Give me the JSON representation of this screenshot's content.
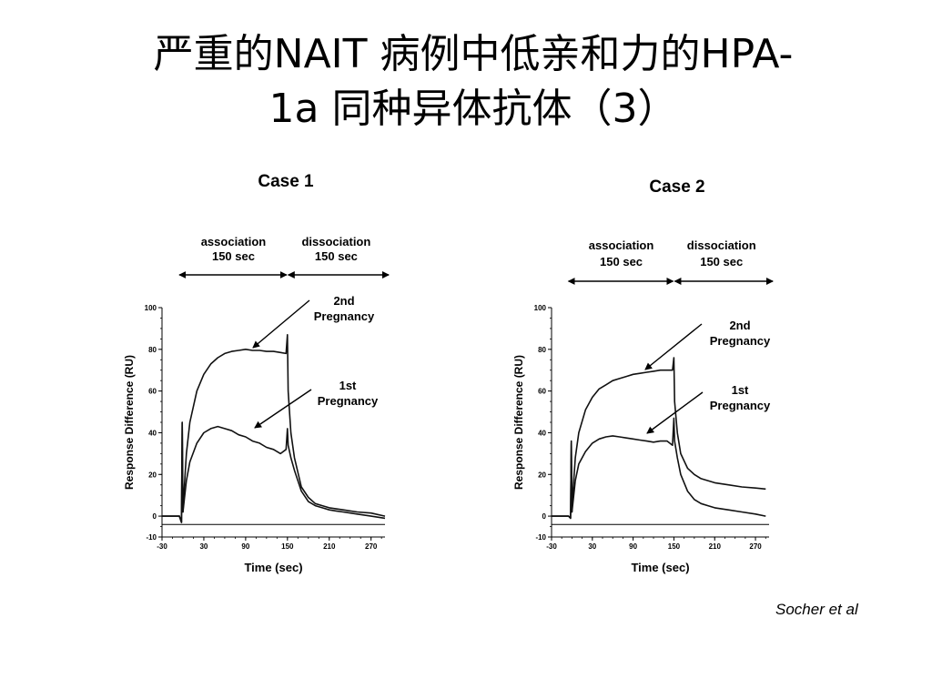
{
  "slide": {
    "title_line1": "严重的NAIT 病例中低亲和力的HPA-",
    "title_line2": "1a 同种异体抗体（3）",
    "citation": "Socher et al"
  },
  "chart_data": [
    {
      "type": "line",
      "title": "Case 1",
      "xlabel": "Time (sec)",
      "ylabel": "Response Difference (RU)",
      "xlim": [
        -30,
        290
      ],
      "ylim": [
        -10,
        100
      ],
      "xticks": [
        -30,
        30,
        90,
        150,
        210,
        270
      ],
      "yticks": [
        -10,
        0,
        20,
        40,
        60,
        80,
        100
      ],
      "phases": [
        {
          "label1": "association",
          "label2": "150 sec"
        },
        {
          "label1": "dissociation",
          "label2": "150 sec"
        }
      ],
      "annotations": [
        {
          "line1": "2nd",
          "line2": "Pregnancy",
          "series": "2nd Pregnancy"
        },
        {
          "line1": "1st",
          "line2": "Pregnancy",
          "series": "1st Pregnancy"
        }
      ],
      "series": [
        {
          "name": "2nd Pregnancy",
          "x": [
            -30,
            -5,
            -2,
            -1,
            0,
            2,
            5,
            10,
            20,
            30,
            40,
            50,
            60,
            70,
            80,
            90,
            100,
            110,
            120,
            130,
            140,
            148,
            150,
            151,
            155,
            160,
            170,
            180,
            190,
            200,
            210,
            220,
            230,
            250,
            270,
            290
          ],
          "y": [
            0,
            0,
            -3,
            45,
            2,
            14,
            30,
            45,
            60,
            68,
            73,
            76,
            78,
            79,
            79.5,
            80,
            79.5,
            79.5,
            79,
            79,
            78.5,
            78,
            87,
            60,
            40,
            28,
            14,
            9,
            6,
            5,
            4,
            3.5,
            3,
            2,
            1.5,
            0
          ]
        },
        {
          "name": "1st Pregnancy",
          "x": [
            -30,
            -5,
            -2,
            -1,
            0,
            2,
            5,
            10,
            20,
            30,
            40,
            50,
            60,
            70,
            80,
            90,
            100,
            110,
            120,
            130,
            140,
            148,
            150,
            151,
            155,
            160,
            170,
            180,
            190,
            200,
            210,
            220,
            230,
            250,
            270,
            290
          ],
          "y": [
            0,
            0,
            -3,
            45,
            2,
            8,
            17,
            26,
            35,
            40,
            42,
            43,
            42,
            41,
            39,
            38,
            36,
            35,
            33,
            32,
            30,
            32,
            42,
            34,
            28,
            22,
            12,
            7,
            5,
            4,
            3,
            2.5,
            2,
            1,
            0,
            -1
          ]
        }
      ]
    },
    {
      "type": "line",
      "title": "Case 2",
      "xlabel": "Time (sec)",
      "ylabel": "Response Difference (RU)",
      "xlim": [
        -30,
        290
      ],
      "ylim": [
        -10,
        100
      ],
      "xticks": [
        -30,
        30,
        90,
        150,
        210,
        270
      ],
      "yticks": [
        -10,
        0,
        20,
        40,
        60,
        80,
        100
      ],
      "phases": [
        {
          "label1": "association",
          "label2": "150 sec"
        },
        {
          "label1": "dissociation",
          "label2": "150 sec"
        }
      ],
      "annotations": [
        {
          "line1": "2nd",
          "line2": "Pregnancy",
          "series": "2nd Pregnancy"
        },
        {
          "line1": "1st",
          "line2": "Pregnancy",
          "series": "1st Pregnancy"
        }
      ],
      "series": [
        {
          "name": "2nd Pregnancy",
          "x": [
            -30,
            -5,
            -2,
            -1,
            0,
            2,
            5,
            10,
            20,
            30,
            40,
            50,
            60,
            70,
            80,
            90,
            100,
            110,
            120,
            130,
            140,
            148,
            150,
            151,
            155,
            160,
            170,
            180,
            190,
            200,
            210,
            220,
            230,
            250,
            270,
            285
          ],
          "y": [
            0,
            0,
            -1,
            35,
            2,
            14,
            28,
            40,
            51,
            57,
            61,
            63,
            65,
            66,
            67,
            68,
            68.5,
            69,
            69.5,
            70,
            70,
            70,
            76,
            55,
            40,
            30,
            23,
            20,
            18,
            17,
            16,
            15.5,
            15,
            14,
            13.5,
            13
          ]
        },
        {
          "name": "1st Pregnancy",
          "x": [
            -30,
            -5,
            -2,
            -1,
            0,
            2,
            5,
            10,
            20,
            30,
            40,
            50,
            60,
            70,
            80,
            90,
            100,
            110,
            120,
            130,
            140,
            148,
            150,
            151,
            155,
            160,
            170,
            180,
            190,
            200,
            210,
            220,
            230,
            250,
            270,
            285
          ],
          "y": [
            0,
            0,
            -1,
            36,
            2,
            8,
            17,
            25,
            31,
            35,
            37,
            38,
            38.5,
            38,
            37.5,
            37,
            36.5,
            36,
            35.5,
            36,
            36,
            34,
            47,
            36,
            28,
            20,
            12,
            8,
            6,
            5,
            4,
            3.5,
            3,
            2,
            1,
            0
          ]
        }
      ]
    }
  ]
}
